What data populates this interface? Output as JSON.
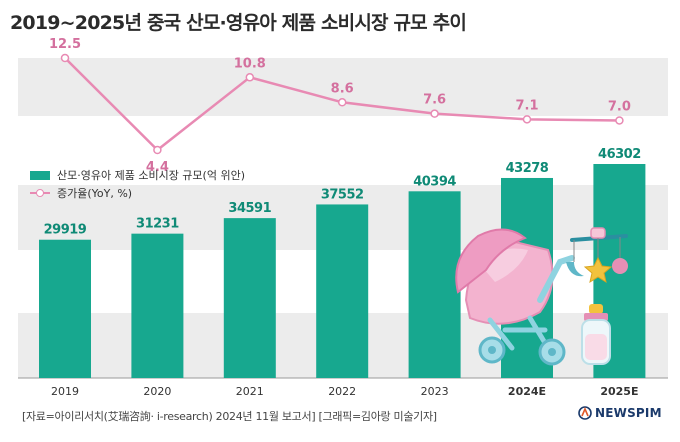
{
  "title": "2019~2025년 중국 산모·영유아 제품 소비시장 규모 추이",
  "footer": "[자료=아이리서치(艾瑞咨詢· i-research) 2024년 11월 보고서] [그래픽=김아랑 미술기자]",
  "brand": "NEWSPIM",
  "colors": {
    "bar": "#17a88f",
    "line": "#e88ab3",
    "value_bar": "#0f8a76",
    "value_line": "#d4709e",
    "band": "#ececec"
  },
  "chart_data": {
    "type": "bar",
    "categories": [
      "2019",
      "2020",
      "2021",
      "2022",
      "2023",
      "2024E",
      "2025E"
    ],
    "series": [
      {
        "name": "산모·영유아 제품 소비시장 규모(억 위안)",
        "type": "bar",
        "values": [
          29919,
          31231,
          34591,
          37552,
          40394,
          43278,
          46302
        ]
      },
      {
        "name": "증가율(YoY, %)",
        "type": "line",
        "values": [
          12.5,
          4.4,
          10.8,
          8.6,
          7.6,
          7.1,
          7.0
        ],
        "labels": [
          "12.5",
          "4.4",
          "10.8",
          "8.6",
          "7.6",
          "7.1",
          "7.0"
        ]
      }
    ],
    "xlabel": "",
    "ylabel": "",
    "legend_position": "top-left",
    "grid": false
  }
}
